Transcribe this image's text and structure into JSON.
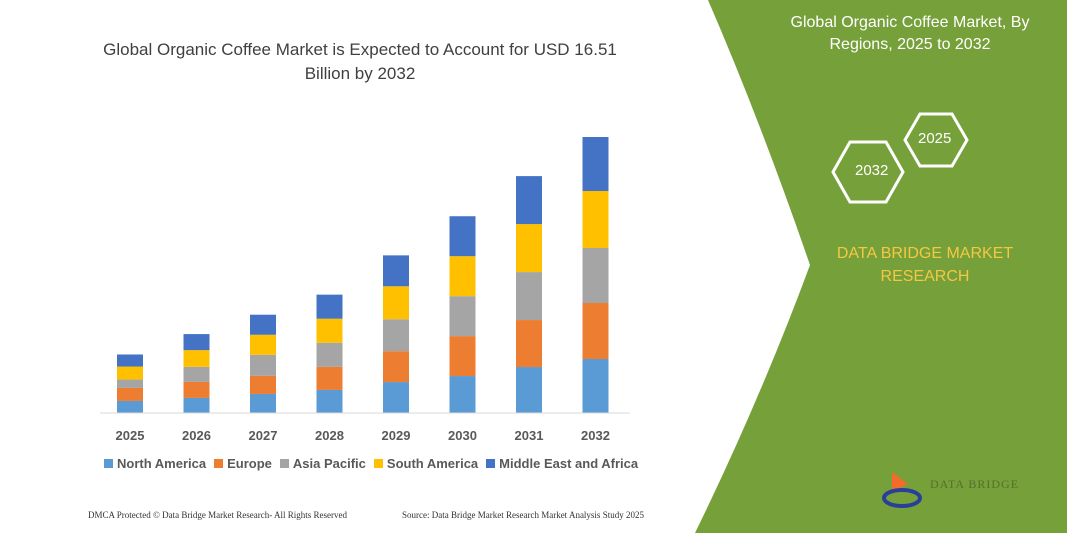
{
  "title": "Global Organic Coffee Market is Expected to Account for USD 16.51 Billion by 2032",
  "side_panel": {
    "title": "Global Organic Coffee Market, By Regions, 2025 to 2032",
    "hex_years": [
      "2025",
      "2032"
    ],
    "brand": "DATA BRIDGE MARKET RESEARCH",
    "logo_text": "DATA BRIDGE",
    "panel_color": "#76a03a"
  },
  "footer": {
    "left": "DMCA Protected © Data Bridge Market Research- All Rights Reserved",
    "right": "Source: Data Bridge Market Research Market Analysis Study 2025"
  },
  "chart_data": {
    "type": "bar",
    "stacked": true,
    "title": "Global Organic Coffee Market is Expected to Account for USD 16.51 Billion by 2032",
    "categories": [
      "2025",
      "2026",
      "2027",
      "2028",
      "2029",
      "2030",
      "2031",
      "2032"
    ],
    "series": [
      {
        "name": "North America",
        "color": "#5b9bd5",
        "values": [
          0.72,
          0.9,
          1.14,
          1.38,
          1.85,
          2.21,
          2.75,
          3.23
        ]
      },
      {
        "name": "Europe",
        "color": "#ed7d31",
        "values": [
          0.78,
          0.96,
          1.08,
          1.38,
          1.85,
          2.39,
          2.81,
          3.35
        ]
      },
      {
        "name": "Asia Pacific",
        "color": "#a5a5a5",
        "values": [
          0.5,
          0.9,
          1.26,
          1.44,
          1.91,
          2.39,
          2.87,
          3.29
        ]
      },
      {
        "name": "South America",
        "color": "#ffc000",
        "values": [
          0.78,
          1.0,
          1.2,
          1.44,
          1.97,
          2.39,
          2.87,
          3.41
        ]
      },
      {
        "name": "Middle East and Africa",
        "color": "#4472c4",
        "values": [
          0.72,
          0.96,
          1.2,
          1.44,
          1.85,
          2.39,
          2.87,
          3.23
        ]
      }
    ],
    "legend_position": "bottom",
    "grid": false,
    "y_axis_visible": false
  }
}
